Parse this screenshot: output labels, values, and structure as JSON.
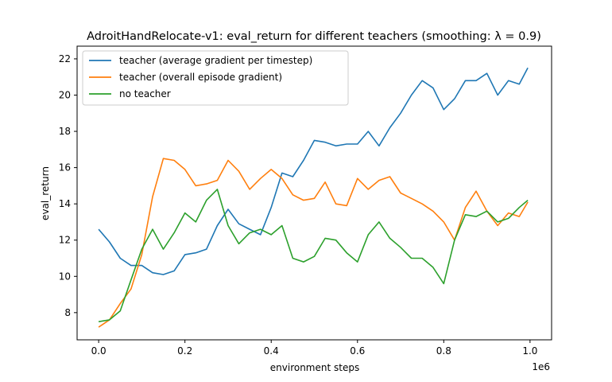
{
  "chart_data": {
    "type": "line",
    "title": "AdroitHandRelocate-v1: eval_return for different teachers (smoothing: λ = 0.9)",
    "xlabel": "environment steps",
    "ylabel": "eval_return",
    "x_scale_label": "1e6",
    "xlim": [
      -0.05,
      1.05
    ],
    "ylim": [
      6.5,
      22.7
    ],
    "xticks": [
      0.0,
      0.2,
      0.4,
      0.6,
      0.8,
      1.0
    ],
    "xtick_labels": [
      "0.0",
      "0.2",
      "0.4",
      "0.6",
      "0.8",
      "1.0"
    ],
    "yticks": [
      8,
      10,
      12,
      14,
      16,
      18,
      20,
      22
    ],
    "ytick_labels": [
      "8",
      "10",
      "12",
      "14",
      "16",
      "18",
      "20",
      "22"
    ],
    "grid": false,
    "legend_position": "top-left",
    "x": [
      0.0,
      0.025,
      0.05,
      0.075,
      0.1,
      0.125,
      0.15,
      0.175,
      0.2,
      0.225,
      0.25,
      0.275,
      0.3,
      0.325,
      0.35,
      0.375,
      0.4,
      0.425,
      0.45,
      0.475,
      0.5,
      0.525,
      0.55,
      0.575,
      0.6,
      0.625,
      0.65,
      0.675,
      0.7,
      0.725,
      0.75,
      0.775,
      0.8,
      0.825,
      0.85,
      0.875,
      0.9,
      0.925,
      0.95,
      0.975,
      0.995
    ],
    "series": [
      {
        "name": "teacher (average gradient per timestep)",
        "color": "#1f77b4",
        "values": [
          12.6,
          11.9,
          11.0,
          10.6,
          10.6,
          10.2,
          10.1,
          10.3,
          11.2,
          11.3,
          11.5,
          12.8,
          13.7,
          12.9,
          12.6,
          12.3,
          13.8,
          15.7,
          15.5,
          16.4,
          17.5,
          17.4,
          17.2,
          17.3,
          17.3,
          18.0,
          17.2,
          18.2,
          19.0,
          20.0,
          20.8,
          20.4,
          19.2,
          19.8,
          20.8,
          20.8,
          21.2,
          20.0,
          20.8,
          20.6,
          21.5
        ]
      },
      {
        "name": "teacher (overall episode gradient)",
        "color": "#ff7f0e",
        "values": [
          7.2,
          7.6,
          8.5,
          9.3,
          11.2,
          14.4,
          16.5,
          16.4,
          15.9,
          15.0,
          15.1,
          15.3,
          16.4,
          15.8,
          14.8,
          15.4,
          15.9,
          15.4,
          14.5,
          14.2,
          14.3,
          15.2,
          14.0,
          13.9,
          15.4,
          14.8,
          15.3,
          15.5,
          14.6,
          14.3,
          14.0,
          13.6,
          13.0,
          12.0,
          13.8,
          14.7,
          13.6,
          12.8,
          13.5,
          13.3,
          14.1
        ]
      },
      {
        "name": "no teacher",
        "color": "#2ca02c",
        "values": [
          7.5,
          7.6,
          8.1,
          9.8,
          11.5,
          12.6,
          11.5,
          12.4,
          13.5,
          13.0,
          14.2,
          14.8,
          12.8,
          11.8,
          12.4,
          12.6,
          12.3,
          12.8,
          11.0,
          10.8,
          11.1,
          12.1,
          12.0,
          11.3,
          10.8,
          12.3,
          13.0,
          12.1,
          11.6,
          11.0,
          11.0,
          10.5,
          9.6,
          12.0,
          13.4,
          13.3,
          13.6,
          13.0,
          13.2,
          13.8,
          14.2
        ]
      }
    ]
  }
}
